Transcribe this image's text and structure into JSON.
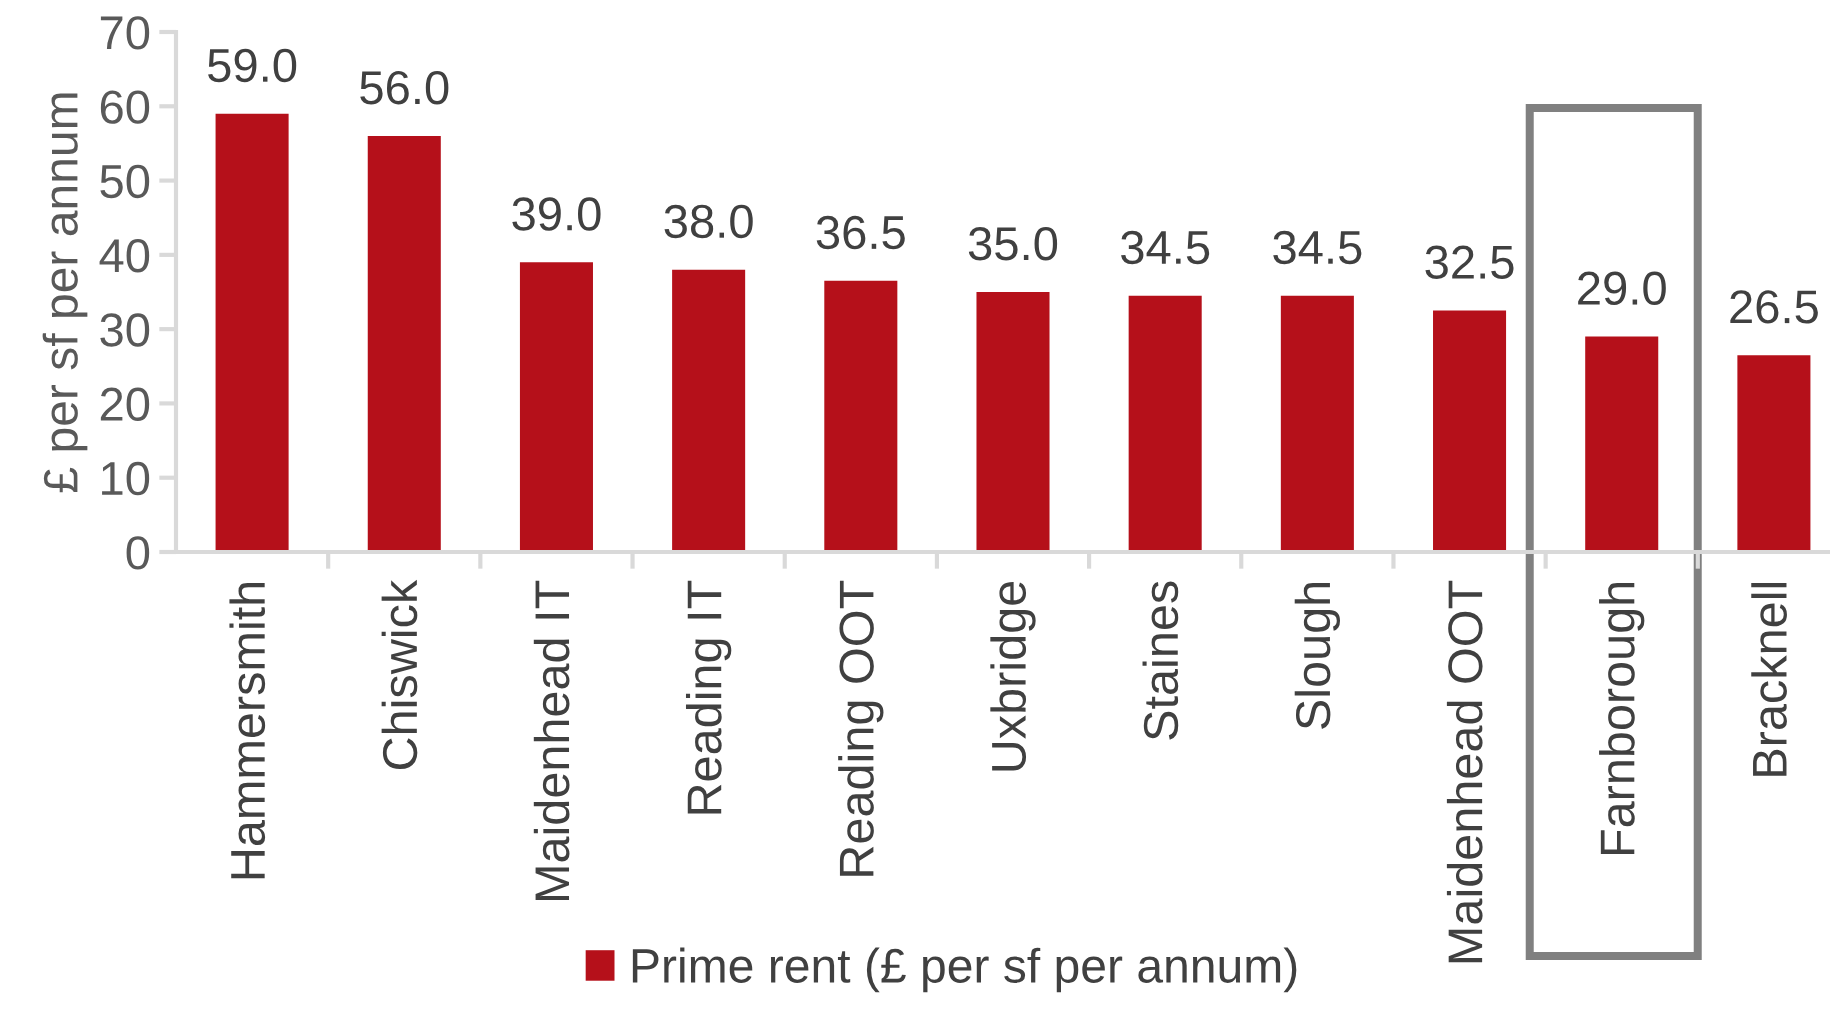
{
  "chart_data": {
    "type": "bar",
    "ylabel": "£ per sf per annum",
    "categories": [
      "Hammersmith",
      "Chiswick",
      "Maidenhead IT",
      "Reading IT",
      "Reading OOT",
      "Uxbridge",
      "Staines",
      "Slough",
      "Maidenhead OOT",
      "Farnborough",
      "Bracknell"
    ],
    "series": [
      {
        "name": "Prime rent (£ per sf per annum)",
        "color": "#b5101a",
        "values": [
          59.0,
          56.0,
          39.0,
          38.0,
          36.5,
          35.0,
          34.5,
          34.5,
          32.5,
          29.0,
          26.5
        ],
        "value_labels": [
          "59.0",
          "56.0",
          "39.0",
          "38.0",
          "36.5",
          "35.0",
          "34.5",
          "34.5",
          "32.5",
          "29.0",
          "26.5"
        ]
      }
    ],
    "ylim": [
      0,
      70
    ],
    "yticks": [
      0,
      10,
      20,
      30,
      40,
      50,
      60,
      70
    ],
    "legend": "bottom"
  }
}
